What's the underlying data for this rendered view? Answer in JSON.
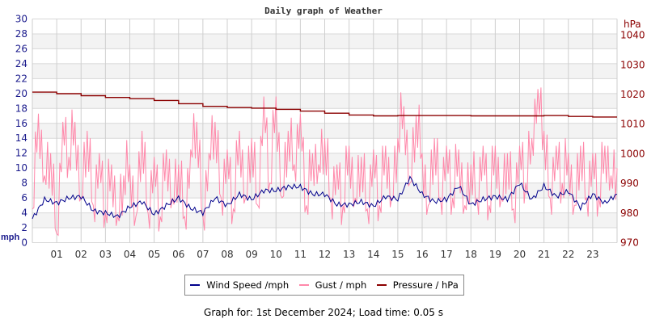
{
  "chart_data": {
    "type": "line",
    "title": "Daily graph of Weather",
    "left_axis": {
      "label": "mph",
      "range": [
        0,
        30
      ],
      "ticks": [
        0,
        2,
        4,
        6,
        8,
        10,
        12,
        14,
        16,
        18,
        20,
        22,
        24,
        26,
        28,
        30
      ],
      "color": "#1a1a8c"
    },
    "right_axis": {
      "label": "hPa",
      "range": [
        970,
        1045.5
      ],
      "ticks": [
        970,
        980,
        990,
        1000,
        1010,
        1020,
        1030,
        1040
      ],
      "color": "#8b0000"
    },
    "x_axis": {
      "range_hours": [
        0,
        24
      ],
      "tick_labels": [
        "01",
        "02",
        "03",
        "04",
        "05",
        "06",
        "07",
        "08",
        "09",
        "10",
        "11",
        "12",
        "13",
        "14",
        "15",
        "16",
        "17",
        "18",
        "19",
        "20",
        "21",
        "22",
        "23"
      ]
    },
    "grid": true,
    "legend_placement": "bottom",
    "series": [
      {
        "name": "Wind Speed /mph",
        "axis": "left",
        "color": "#00008b",
        "step_hours": 0.5,
        "values": [
          3.2,
          5.8,
          5.3,
          6.0,
          6.2,
          4.3,
          4.0,
          3.5,
          4.8,
          5.5,
          3.8,
          5.0,
          6.0,
          4.6,
          4.0,
          6.0,
          5.0,
          6.5,
          5.8,
          7.0,
          7.0,
          7.5,
          7.5,
          6.5,
          6.5,
          5.1,
          5.1,
          5.5,
          4.9,
          6.2,
          5.8,
          8.7,
          6.5,
          5.5,
          5.8,
          7.6,
          5.1,
          5.8,
          6.2,
          5.8,
          8.0,
          5.8,
          7.6,
          6.2,
          6.9,
          4.7,
          6.5,
          5.3,
          6.5
        ]
      },
      {
        "name": "Gust / mph",
        "axis": "left",
        "color": "#ff88aa",
        "step_hours": 0.25,
        "values": [
          4.5,
          17.3,
          9,
          12,
          1.2,
          16.2,
          11.5,
          16.2,
          6,
          15,
          5,
          12,
          4,
          10.5,
          3.5,
          9,
          10.5,
          3.5,
          15,
          4,
          11.5,
          3.5,
          12.5,
          6,
          10.5,
          3.5,
          12.5,
          16.2,
          3.5,
          12,
          16.2,
          6,
          12.5,
          4.5,
          15,
          6,
          14,
          5,
          19.6,
          8,
          19.6,
          6,
          15,
          10.5,
          17.3,
          5,
          12,
          10.5,
          14,
          6,
          10.5,
          5,
          13,
          6,
          11.5,
          4.5,
          12.5,
          5,
          13,
          6,
          14,
          18.3,
          8,
          17,
          12,
          5,
          14,
          6,
          13,
          6,
          12.5,
          5,
          10.5,
          6,
          13,
          5,
          13,
          6,
          12,
          4.5,
          13,
          8,
          14,
          20.6,
          15,
          6,
          13,
          8,
          12,
          5,
          13,
          6,
          12,
          6,
          13,
          9,
          10
        ]
      },
      {
        "name": "Pressure / hPa",
        "axis": "right",
        "color": "#8b0000",
        "step_hours": 1,
        "values": [
          1020.8,
          1020.3,
          1019.6,
          1019.0,
          1018.6,
          1018.0,
          1016.9,
          1016.0,
          1015.6,
          1015.4,
          1015.0,
          1014.4,
          1013.7,
          1013.1,
          1012.8,
          1012.9,
          1012.9,
          1012.9,
          1012.8,
          1012.8,
          1012.8,
          1012.9,
          1012.6,
          1012.4,
          1012.4
        ]
      }
    ]
  },
  "footer": "Graph for: 1st December 2024; Load time: 0.05 s"
}
